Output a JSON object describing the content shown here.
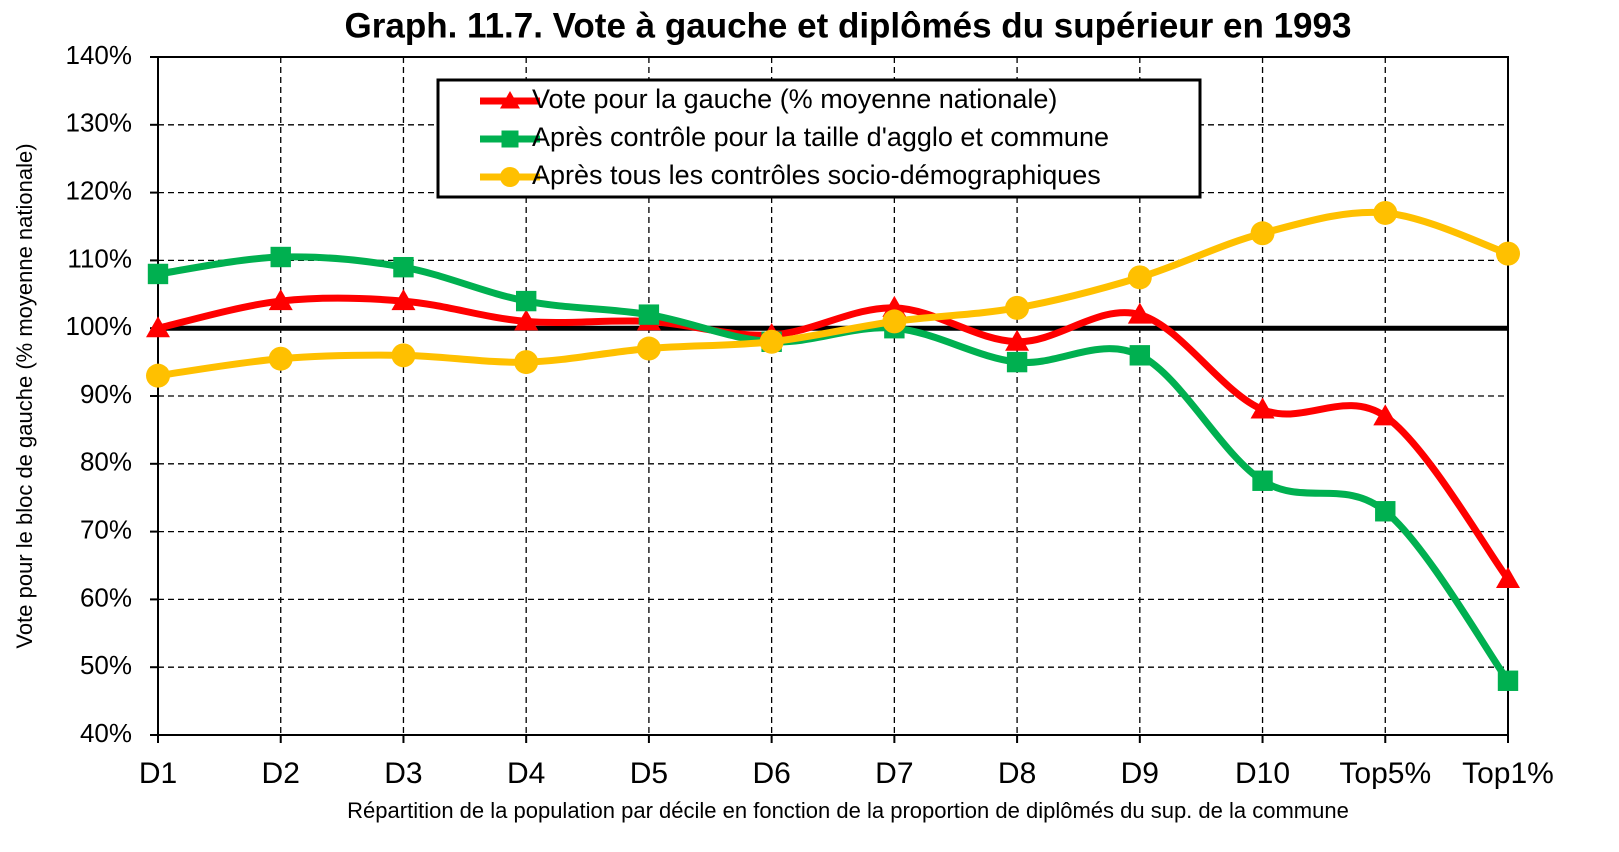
{
  "chart_data": {
    "type": "line",
    "title": "Graph. 11.7. Vote à gauche et diplômés du supérieur en 1993",
    "x_label": "Répartition de la population par décile en fonction de la proportion de diplômés du sup. de la commune",
    "y_label": "Vote pour le bloc de gauche (% moyenne nationale)",
    "categories": [
      "D1",
      "D2",
      "D3",
      "D4",
      "D5",
      "D6",
      "D7",
      "D8",
      "D9",
      "D10",
      "Top5%",
      "Top1%"
    ],
    "series": [
      {
        "name": "Vote pour la gauche (% moyenne nationale)",
        "color": "#ff0000",
        "marker": "triangle",
        "values": [
          100,
          104,
          104,
          101,
          101,
          99,
          103,
          98,
          102,
          88,
          87,
          63
        ]
      },
      {
        "name": "Après contrôle pour la taille d'agglo et commune",
        "color": "#00b050",
        "marker": "square",
        "values": [
          108,
          110.5,
          109,
          104,
          102,
          98,
          100,
          95,
          96,
          77.5,
          73,
          48
        ]
      },
      {
        "name": "Après tous les contrôles socio-démographiques",
        "color": "#ffc000",
        "marker": "circle",
        "values": [
          93,
          95.5,
          96,
          95,
          97,
          98,
          101,
          103,
          107.5,
          114,
          117,
          111
        ]
      }
    ],
    "reference_line": 100,
    "ylim": [
      40,
      140
    ],
    "yticks": [
      {
        "value": 40,
        "label": "40%"
      },
      {
        "value": 50,
        "label": "50%"
      },
      {
        "value": 60,
        "label": "60%"
      },
      {
        "value": 70,
        "label": "70%"
      },
      {
        "value": 80,
        "label": "80%"
      },
      {
        "value": 90,
        "label": "90%"
      },
      {
        "value": 100,
        "label": "100%"
      },
      {
        "value": 110,
        "label": "110%"
      },
      {
        "value": 120,
        "label": "120%"
      },
      {
        "value": 130,
        "label": "130%"
      },
      {
        "value": 140,
        "label": "140%"
      }
    ],
    "grid": true,
    "legend": "top"
  }
}
